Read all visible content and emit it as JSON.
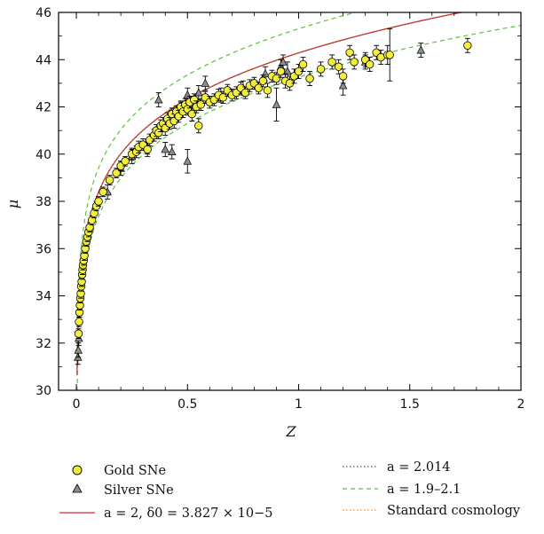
{
  "chart_data": {
    "type": "scatter",
    "xlabel": "Z",
    "ylabel": "μ",
    "xlim": [
      -0.08,
      2.0
    ],
    "ylim": [
      30,
      46
    ],
    "xticks": [
      0,
      0.5,
      1,
      1.5,
      2
    ],
    "xtick_labels": [
      "0",
      "0.5",
      "1",
      "1.5",
      "2"
    ],
    "yticks": [
      30,
      32,
      34,
      36,
      38,
      40,
      42,
      44,
      46
    ],
    "ytick_labels": [
      "30",
      "32",
      "34",
      "36",
      "38",
      "40",
      "42",
      "44",
      "46"
    ],
    "grid": false,
    "legend_position": "bottom",
    "series": [
      {
        "name": "Gold SNe",
        "marker": "circle",
        "color": "#f2ee3c",
        "points": [
          [
            0.01,
            32.4,
            0.2
          ],
          [
            0.012,
            32.9,
            0.2
          ],
          [
            0.014,
            33.3,
            0.2
          ],
          [
            0.016,
            33.6,
            0.2
          ],
          [
            0.018,
            33.9,
            0.2
          ],
          [
            0.02,
            34.1,
            0.2
          ],
          [
            0.022,
            34.4,
            0.2
          ],
          [
            0.024,
            34.6,
            0.2
          ],
          [
            0.026,
            34.9,
            0.2
          ],
          [
            0.028,
            35.1,
            0.2
          ],
          [
            0.03,
            35.3,
            0.2
          ],
          [
            0.033,
            35.5,
            0.2
          ],
          [
            0.036,
            35.7,
            0.2
          ],
          [
            0.04,
            36.0,
            0.2
          ],
          [
            0.045,
            36.3,
            0.2
          ],
          [
            0.05,
            36.5,
            0.2
          ],
          [
            0.055,
            36.7,
            0.2
          ],
          [
            0.06,
            36.9,
            0.2
          ],
          [
            0.07,
            37.2,
            0.2
          ],
          [
            0.08,
            37.5,
            0.2
          ],
          [
            0.09,
            37.8,
            0.2
          ],
          [
            0.1,
            38.0,
            0.2
          ],
          [
            0.12,
            38.4,
            0.2
          ],
          [
            0.15,
            38.9,
            0.2
          ],
          [
            0.18,
            39.2,
            0.2
          ],
          [
            0.2,
            39.5,
            0.2
          ],
          [
            0.22,
            39.7,
            0.2
          ],
          [
            0.25,
            40.0,
            0.25
          ],
          [
            0.27,
            40.1,
            0.25
          ],
          [
            0.28,
            40.3,
            0.25
          ],
          [
            0.3,
            40.4,
            0.25
          ],
          [
            0.32,
            40.2,
            0.3
          ],
          [
            0.33,
            40.6,
            0.25
          ],
          [
            0.35,
            40.8,
            0.25
          ],
          [
            0.36,
            41.0,
            0.25
          ],
          [
            0.37,
            40.9,
            0.25
          ],
          [
            0.38,
            41.2,
            0.25
          ],
          [
            0.39,
            41.3,
            0.25
          ],
          [
            0.4,
            41.1,
            0.3
          ],
          [
            0.41,
            41.5,
            0.25
          ],
          [
            0.42,
            41.3,
            0.25
          ],
          [
            0.43,
            41.7,
            0.25
          ],
          [
            0.44,
            41.4,
            0.3
          ],
          [
            0.45,
            41.8,
            0.25
          ],
          [
            0.46,
            41.6,
            0.25
          ],
          [
            0.47,
            42.0,
            0.25
          ],
          [
            0.48,
            41.8,
            0.25
          ],
          [
            0.49,
            42.1,
            0.25
          ],
          [
            0.5,
            41.9,
            0.25
          ],
          [
            0.51,
            42.2,
            0.25
          ],
          [
            0.52,
            41.7,
            0.3
          ],
          [
            0.53,
            42.3,
            0.25
          ],
          [
            0.54,
            42.0,
            0.25
          ],
          [
            0.55,
            41.2,
            0.3
          ],
          [
            0.56,
            42.1,
            0.25
          ],
          [
            0.58,
            42.4,
            0.25
          ],
          [
            0.6,
            42.2,
            0.25
          ],
          [
            0.62,
            42.3,
            0.25
          ],
          [
            0.64,
            42.5,
            0.25
          ],
          [
            0.66,
            42.4,
            0.25
          ],
          [
            0.68,
            42.7,
            0.25
          ],
          [
            0.7,
            42.5,
            0.25
          ],
          [
            0.72,
            42.6,
            0.25
          ],
          [
            0.74,
            42.8,
            0.25
          ],
          [
            0.76,
            42.6,
            0.25
          ],
          [
            0.78,
            42.9,
            0.25
          ],
          [
            0.8,
            43.0,
            0.25
          ],
          [
            0.82,
            42.8,
            0.25
          ],
          [
            0.84,
            43.1,
            0.25
          ],
          [
            0.86,
            42.7,
            0.3
          ],
          [
            0.88,
            43.3,
            0.25
          ],
          [
            0.9,
            43.2,
            0.25
          ],
          [
            0.92,
            43.5,
            0.25
          ],
          [
            0.94,
            43.1,
            0.3
          ],
          [
            0.96,
            43.0,
            0.3
          ],
          [
            0.98,
            43.3,
            0.3
          ],
          [
            1.0,
            43.5,
            0.3
          ],
          [
            1.02,
            43.8,
            0.3
          ],
          [
            1.05,
            43.2,
            0.3
          ],
          [
            1.1,
            43.6,
            0.3
          ],
          [
            1.15,
            43.9,
            0.3
          ],
          [
            1.18,
            43.7,
            0.3
          ],
          [
            1.2,
            43.3,
            0.3
          ],
          [
            1.23,
            44.3,
            0.3
          ],
          [
            1.25,
            43.9,
            0.3
          ],
          [
            1.3,
            44.0,
            0.3
          ],
          [
            1.32,
            43.8,
            0.3
          ],
          [
            1.35,
            44.3,
            0.3
          ],
          [
            1.37,
            44.1,
            0.3
          ],
          [
            1.4,
            44.2,
            0.4
          ],
          [
            1.41,
            44.2,
            1.1
          ],
          [
            1.76,
            44.6,
            0.3
          ]
        ]
      },
      {
        "name": "Silver SNe",
        "marker": "triangle",
        "color": "#8c8c8c",
        "points": [
          [
            0.007,
            31.4,
            0.3
          ],
          [
            0.009,
            31.7,
            0.3
          ],
          [
            0.011,
            32.2,
            0.3
          ],
          [
            0.14,
            38.4,
            0.3
          ],
          [
            0.2,
            39.4,
            0.3
          ],
          [
            0.25,
            39.9,
            0.3
          ],
          [
            0.32,
            40.3,
            0.3
          ],
          [
            0.37,
            42.3,
            0.3
          ],
          [
            0.4,
            40.2,
            0.3
          ],
          [
            0.43,
            40.1,
            0.3
          ],
          [
            0.47,
            41.9,
            0.3
          ],
          [
            0.5,
            39.7,
            0.5
          ],
          [
            0.5,
            42.5,
            0.3
          ],
          [
            0.55,
            42.6,
            0.3
          ],
          [
            0.58,
            43.0,
            0.3
          ],
          [
            0.65,
            42.5,
            0.3
          ],
          [
            0.75,
            42.8,
            0.3
          ],
          [
            0.85,
            43.4,
            0.3
          ],
          [
            0.9,
            42.1,
            0.7
          ],
          [
            0.92,
            43.7,
            0.3
          ],
          [
            0.93,
            43.9,
            0.3
          ],
          [
            0.95,
            43.5,
            0.4
          ],
          [
            1.2,
            42.9,
            0.4
          ],
          [
            1.3,
            43.9,
            0.3
          ],
          [
            1.55,
            44.4,
            0.3
          ]
        ]
      }
    ],
    "curves": [
      {
        "name": "a = 2, δ0 = 3.827 × 10−5",
        "style": "solid",
        "color": "#d62a2a"
      },
      {
        "name": "a = 2.014",
        "style": "dotted",
        "color": "#555555"
      },
      {
        "name": "a = 1.9–2.1",
        "style": "dashed",
        "color": "#5cbf3a"
      },
      {
        "name": "Standard cosmology",
        "style": "dotted",
        "color": "#f08a3a"
      }
    ]
  }
}
